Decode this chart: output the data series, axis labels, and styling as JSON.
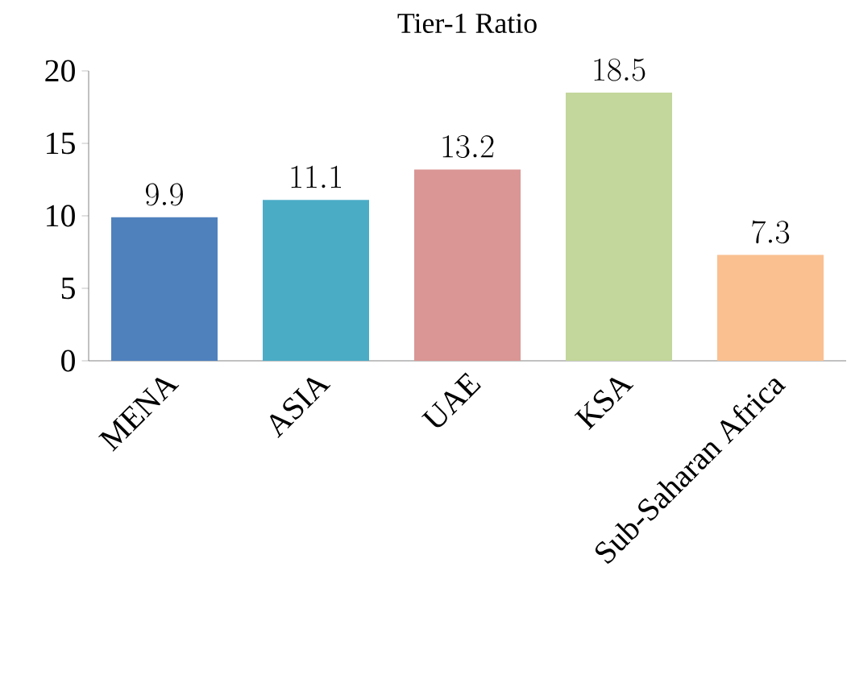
{
  "chart_data": {
    "type": "bar",
    "title": "Tier-1 Ratio",
    "categories": [
      "MENA",
      "ASIA",
      "UAE",
      "KSA",
      "Sub-Saharan Africa"
    ],
    "values": [
      9.9,
      11.1,
      13.2,
      18.5,
      7.3
    ],
    "colors": [
      "#4f81bd",
      "#4bacc6",
      "#d99694",
      "#c3d69b",
      "#fac090"
    ],
    "ylim": [
      0,
      20
    ],
    "yticks": [
      0,
      5,
      10,
      15,
      20
    ],
    "data_labels": true
  }
}
